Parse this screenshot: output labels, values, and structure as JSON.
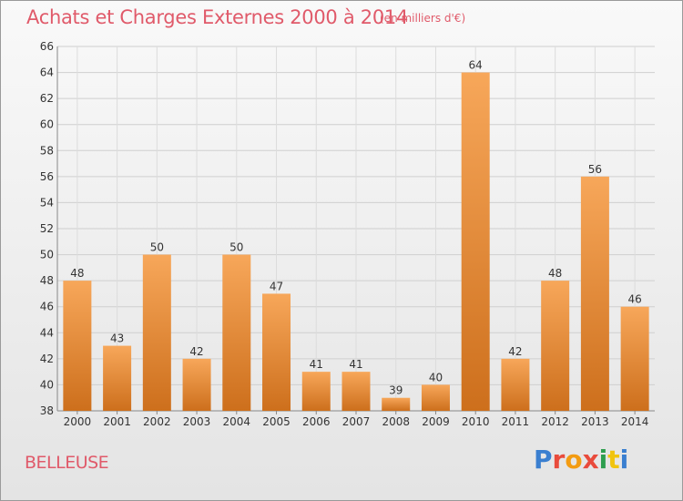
{
  "header": {
    "title": "Achats et Charges Externes 2000 à 2014",
    "subtitle": "(en milliers d'€)"
  },
  "footer": {
    "commune": "BELLEUSE",
    "logo_text": "Proxiti",
    "logo_colors": [
      "#3a7fd0",
      "#e94b3c",
      "#f39c12",
      "#e94b3c",
      "#2e9e4f",
      "#f1c40f",
      "#3a7fd0"
    ]
  },
  "colors": {
    "bar_top": "#f7a75a",
    "bar_bottom": "#cd6f1c",
    "text": "#e05a6a"
  },
  "chart_data": {
    "type": "bar",
    "categories": [
      "2000",
      "2001",
      "2002",
      "2003",
      "2004",
      "2005",
      "2006",
      "2007",
      "2008",
      "2009",
      "2010",
      "2011",
      "2012",
      "2013",
      "2014"
    ],
    "values": [
      48,
      43,
      50,
      42,
      50,
      47,
      41,
      41,
      39,
      40,
      64,
      42,
      48,
      56,
      46
    ],
    "ylim": [
      38,
      66
    ],
    "yticks": [
      38,
      40,
      42,
      44,
      46,
      48,
      50,
      52,
      54,
      56,
      58,
      60,
      62,
      64,
      66
    ],
    "grid": true
  }
}
